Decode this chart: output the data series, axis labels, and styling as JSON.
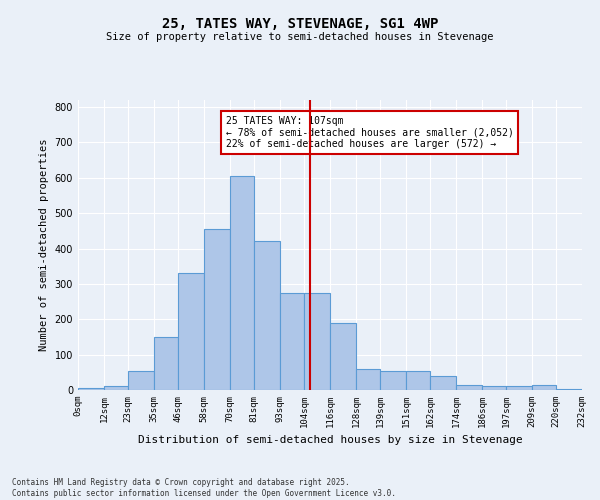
{
  "title": "25, TATES WAY, STEVENAGE, SG1 4WP",
  "subtitle": "Size of property relative to semi-detached houses in Stevenage",
  "xlabel": "Distribution of semi-detached houses by size in Stevenage",
  "ylabel": "Number of semi-detached properties",
  "bar_values": [
    5,
    10,
    55,
    150,
    330,
    455,
    605,
    420,
    275,
    275,
    190,
    60,
    55,
    55,
    40,
    15,
    10,
    10,
    15,
    3
  ],
  "bin_edges": [
    0,
    12,
    23,
    35,
    46,
    58,
    70,
    81,
    93,
    104,
    116,
    128,
    139,
    151,
    162,
    174,
    186,
    197,
    209,
    220,
    232
  ],
  "tick_labels": [
    "0sqm",
    "12sqm",
    "23sqm",
    "35sqm",
    "46sqm",
    "58sqm",
    "70sqm",
    "81sqm",
    "93sqm",
    "104sqm",
    "116sqm",
    "128sqm",
    "139sqm",
    "151sqm",
    "162sqm",
    "174sqm",
    "186sqm",
    "197sqm",
    "209sqm",
    "220sqm",
    "232sqm"
  ],
  "bar_color": "#aec6e8",
  "bar_edge_color": "#5b9bd5",
  "vline_x": 107,
  "vline_color": "#cc0000",
  "annotation_title": "25 TATES WAY: 107sqm",
  "annotation_line1": "← 78% of semi-detached houses are smaller (2,052)",
  "annotation_line2": "22% of semi-detached houses are larger (572) →",
  "annotation_box_color": "#cc0000",
  "ylim": [
    0,
    820
  ],
  "yticks": [
    0,
    100,
    200,
    300,
    400,
    500,
    600,
    700,
    800
  ],
  "bg_color": "#eaf0f8",
  "footer_line1": "Contains HM Land Registry data © Crown copyright and database right 2025.",
  "footer_line2": "Contains public sector information licensed under the Open Government Licence v3.0."
}
